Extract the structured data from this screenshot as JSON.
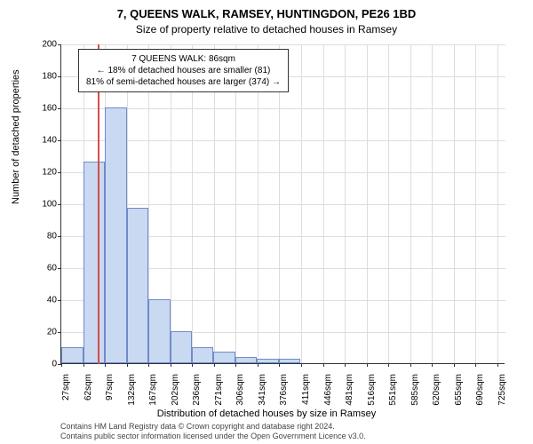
{
  "title": "7, QUEENS WALK, RAMSEY, HUNTINGDON, PE26 1BD",
  "subtitle": "Size of property relative to detached houses in Ramsey",
  "ylabel": "Number of detached properties",
  "xlabel": "Distribution of detached houses by size in Ramsey",
  "chart": {
    "type": "histogram",
    "ylim": [
      0,
      200
    ],
    "ytick_step": 20,
    "bar_color": "#c9d9f2",
    "bar_border": "#6f8bc9",
    "grid_color": "#dddddd",
    "marker_color": "#d94c4c",
    "marker_value": 86,
    "x_min": 27,
    "x_max": 740,
    "x_tick_step": 35,
    "x_tick_labels": [
      "27sqm",
      "62sqm",
      "97sqm",
      "132sqm",
      "167sqm",
      "202sqm",
      "236sqm",
      "271sqm",
      "306sqm",
      "341sqm",
      "376sqm",
      "411sqm",
      "446sqm",
      "481sqm",
      "516sqm",
      "551sqm",
      "585sqm",
      "620sqm",
      "655sqm",
      "690sqm",
      "725sqm"
    ],
    "bins": [
      {
        "x": 27,
        "count": 10
      },
      {
        "x": 62,
        "count": 126
      },
      {
        "x": 97,
        "count": 160
      },
      {
        "x": 132,
        "count": 97
      },
      {
        "x": 167,
        "count": 40
      },
      {
        "x": 202,
        "count": 20
      },
      {
        "x": 236,
        "count": 10
      },
      {
        "x": 271,
        "count": 7
      },
      {
        "x": 306,
        "count": 4
      },
      {
        "x": 341,
        "count": 3
      },
      {
        "x": 376,
        "count": 3
      }
    ]
  },
  "annotation": {
    "line1": "7 QUEENS WALK: 86sqm",
    "line2": "← 18% of detached houses are smaller (81)",
    "line3": "81% of semi-detached houses are larger (374) →"
  },
  "footer": {
    "line1": "Contains HM Land Registry data © Crown copyright and database right 2024.",
    "line2": "Contains public sector information licensed under the Open Government Licence v3.0."
  }
}
